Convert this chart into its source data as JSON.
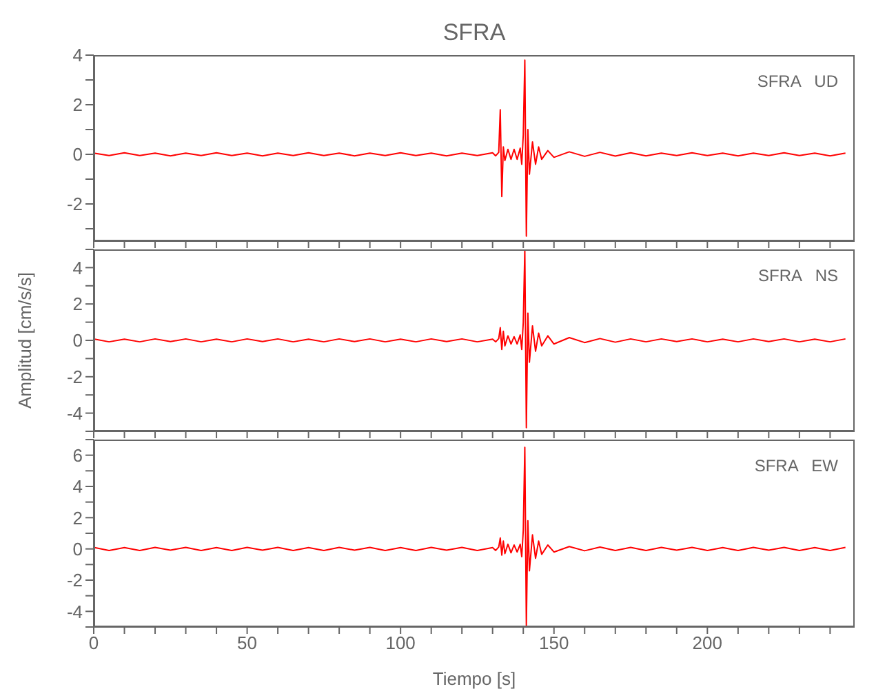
{
  "chart_data": [
    {
      "type": "line",
      "title": "SFRA",
      "annotations": [
        "SFRA   UD"
      ],
      "tick_labels": "y",
      "x": [
        0,
        5,
        10,
        15,
        20,
        25,
        30,
        35,
        40,
        45,
        50,
        55,
        60,
        65,
        70,
        75,
        80,
        85,
        90,
        95,
        100,
        105,
        110,
        115,
        120,
        125,
        130,
        131,
        132,
        132.5,
        133,
        133.5,
        134,
        135,
        136,
        137,
        138,
        139,
        139.5,
        140,
        140.5,
        141,
        141.5,
        142,
        143,
        144,
        145,
        146,
        148,
        150,
        155,
        160,
        165,
        170,
        175,
        180,
        185,
        190,
        195,
        200,
        205,
        210,
        215,
        220,
        225,
        230,
        235,
        240,
        245
      ],
      "series": [
        {
          "color": "#ff0000",
          "values": [
            0.05,
            -0.05,
            0.06,
            -0.05,
            0.05,
            -0.06,
            0.05,
            -0.05,
            0.06,
            -0.05,
            0.05,
            -0.06,
            0.05,
            -0.05,
            0.06,
            -0.05,
            0.05,
            -0.06,
            0.05,
            -0.05,
            0.06,
            -0.05,
            0.05,
            -0.06,
            0.05,
            -0.05,
            0.06,
            -0.06,
            0.08,
            1.8,
            -1.7,
            0.3,
            -0.25,
            0.2,
            -0.2,
            0.2,
            -0.2,
            0.25,
            -0.4,
            0.8,
            3.8,
            -3.3,
            1.0,
            -0.8,
            0.5,
            -0.4,
            0.3,
            -0.2,
            0.15,
            -0.12,
            0.1,
            -0.08,
            0.08,
            -0.07,
            0.06,
            -0.06,
            0.05,
            -0.05,
            0.06,
            -0.05,
            0.05,
            -0.06,
            0.05,
            -0.05,
            0.06,
            -0.05,
            0.05,
            -0.06,
            0.05
          ]
        }
      ],
      "xlim": [
        0,
        248
      ],
      "xticks": [
        0,
        {
          "value": 10,
          "label": null
        },
        {
          "value": 20,
          "label": null
        },
        {
          "value": 30,
          "label": null
        },
        {
          "value": 40,
          "label": null
        },
        50,
        {
          "value": 60,
          "label": null
        },
        {
          "value": 70,
          "label": null
        },
        {
          "value": 80,
          "label": null
        },
        {
          "value": 90,
          "label": null
        },
        100,
        {
          "value": 110,
          "label": null
        },
        {
          "value": 120,
          "label": null
        },
        {
          "value": 130,
          "label": null
        },
        {
          "value": 140,
          "label": null
        },
        150,
        {
          "value": 160,
          "label": null
        },
        {
          "value": 170,
          "label": null
        },
        {
          "value": 180,
          "label": null
        },
        {
          "value": 190,
          "label": null
        },
        200,
        {
          "value": 210,
          "label": null
        },
        {
          "value": 220,
          "label": null
        },
        {
          "value": 230,
          "label": null
        },
        {
          "value": 240,
          "label": null
        }
      ],
      "ylim": [
        -3.5,
        4
      ],
      "yticks": [
        {
          "value": -3,
          "label": null
        },
        -2,
        {
          "value": -1,
          "label": null
        },
        0,
        {
          "value": 1,
          "label": null
        },
        2,
        {
          "value": 3,
          "label": null
        },
        4
      ]
    },
    {
      "type": "line",
      "ylabel": "Amplitud [cm/s/s]",
      "annotations": [
        "SFRA   NS"
      ],
      "tick_labels": "y",
      "x": [
        0,
        5,
        10,
        15,
        20,
        25,
        30,
        35,
        40,
        45,
        50,
        55,
        60,
        65,
        70,
        75,
        80,
        85,
        90,
        95,
        100,
        105,
        110,
        115,
        120,
        125,
        130,
        131,
        132,
        132.5,
        133,
        133.5,
        134,
        135,
        136,
        137,
        138,
        139,
        139.5,
        140,
        140.5,
        141,
        141.5,
        142,
        143,
        144,
        145,
        146,
        148,
        150,
        155,
        160,
        165,
        170,
        175,
        180,
        185,
        190,
        195,
        200,
        205,
        210,
        215,
        220,
        225,
        230,
        235,
        240,
        245
      ],
      "series": [
        {
          "color": "#ff0000",
          "values": [
            0.08,
            -0.08,
            0.07,
            -0.08,
            0.08,
            -0.07,
            0.08,
            -0.08,
            0.07,
            -0.08,
            0.08,
            -0.07,
            0.08,
            -0.08,
            0.07,
            -0.08,
            0.08,
            -0.07,
            0.08,
            -0.08,
            0.07,
            -0.08,
            0.08,
            -0.07,
            0.08,
            -0.08,
            0.07,
            -0.08,
            0.1,
            0.7,
            -0.5,
            0.5,
            -0.3,
            0.25,
            -0.2,
            0.2,
            -0.2,
            0.3,
            -0.5,
            1.0,
            5.0,
            -4.8,
            1.5,
            -1.2,
            0.8,
            -0.6,
            0.4,
            -0.3,
            0.25,
            -0.2,
            0.15,
            -0.12,
            0.1,
            -0.1,
            0.08,
            -0.08,
            0.08,
            -0.07,
            0.08,
            -0.08,
            0.07,
            -0.08,
            0.08,
            -0.07,
            0.08,
            -0.08,
            0.07,
            -0.08,
            0.08
          ]
        }
      ],
      "xlim": [
        0,
        248
      ],
      "xticks": [
        0,
        {
          "value": 10,
          "label": null
        },
        {
          "value": 20,
          "label": null
        },
        {
          "value": 30,
          "label": null
        },
        {
          "value": 40,
          "label": null
        },
        50,
        {
          "value": 60,
          "label": null
        },
        {
          "value": 70,
          "label": null
        },
        {
          "value": 80,
          "label": null
        },
        {
          "value": 90,
          "label": null
        },
        100,
        {
          "value": 110,
          "label": null
        },
        {
          "value": 120,
          "label": null
        },
        {
          "value": 130,
          "label": null
        },
        {
          "value": 140,
          "label": null
        },
        150,
        {
          "value": 160,
          "label": null
        },
        {
          "value": 170,
          "label": null
        },
        {
          "value": 180,
          "label": null
        },
        {
          "value": 190,
          "label": null
        },
        200,
        {
          "value": 210,
          "label": null
        },
        {
          "value": 220,
          "label": null
        },
        {
          "value": 230,
          "label": null
        },
        {
          "value": 240,
          "label": null
        }
      ],
      "ylim": [
        -5,
        5
      ],
      "yticks": [
        {
          "value": -5,
          "label": null
        },
        -4,
        {
          "value": -3,
          "label": null
        },
        -2,
        {
          "value": -1,
          "label": null
        },
        0,
        {
          "value": 1,
          "label": null
        },
        2,
        {
          "value": 3,
          "label": null
        },
        4,
        {
          "value": 5,
          "label": null
        }
      ]
    },
    {
      "type": "line",
      "xlabel": "Tiempo [s]",
      "annotations": [
        "SFRA   EW"
      ],
      "x": [
        0,
        5,
        10,
        15,
        20,
        25,
        30,
        35,
        40,
        45,
        50,
        55,
        60,
        65,
        70,
        75,
        80,
        85,
        90,
        95,
        100,
        105,
        110,
        115,
        120,
        125,
        130,
        131,
        132,
        132.5,
        133,
        133.5,
        134,
        135,
        136,
        137,
        138,
        139,
        139.5,
        140,
        140.5,
        141,
        141.5,
        142,
        143,
        144,
        145,
        146,
        148,
        150,
        155,
        160,
        165,
        170,
        175,
        180,
        185,
        190,
        195,
        200,
        205,
        210,
        215,
        220,
        225,
        230,
        235,
        240,
        245
      ],
      "series": [
        {
          "color": "#ff0000",
          "values": [
            0.1,
            -0.1,
            0.08,
            -0.1,
            0.1,
            -0.08,
            0.1,
            -0.1,
            0.08,
            -0.1,
            0.1,
            -0.08,
            0.1,
            -0.1,
            0.08,
            -0.1,
            0.1,
            -0.08,
            0.1,
            -0.1,
            0.08,
            -0.1,
            0.1,
            -0.08,
            0.1,
            -0.1,
            0.08,
            -0.1,
            0.12,
            0.7,
            -0.4,
            0.5,
            -0.3,
            0.3,
            -0.25,
            0.25,
            -0.2,
            0.3,
            -0.5,
            1.2,
            6.5,
            -4.9,
            1.8,
            -1.4,
            0.9,
            -0.6,
            0.5,
            -0.35,
            0.25,
            -0.2,
            0.15,
            -0.12,
            0.12,
            -0.1,
            0.1,
            -0.1,
            0.1,
            -0.08,
            0.1,
            -0.1,
            0.08,
            -0.1,
            0.1,
            -0.08,
            0.1,
            -0.1,
            0.08,
            -0.1,
            0.1
          ]
        }
      ],
      "xlim": [
        0,
        248
      ],
      "xticks": [
        0,
        {
          "value": 10,
          "label": null
        },
        {
          "value": 20,
          "label": null
        },
        {
          "value": 30,
          "label": null
        },
        {
          "value": 40,
          "label": null
        },
        50,
        {
          "value": 60,
          "label": null
        },
        {
          "value": 70,
          "label": null
        },
        {
          "value": 80,
          "label": null
        },
        {
          "value": 90,
          "label": null
        },
        100,
        {
          "value": 110,
          "label": null
        },
        {
          "value": 120,
          "label": null
        },
        {
          "value": 130,
          "label": null
        },
        {
          "value": 140,
          "label": null
        },
        150,
        {
          "value": 160,
          "label": null
        },
        {
          "value": 170,
          "label": null
        },
        {
          "value": 180,
          "label": null
        },
        {
          "value": 190,
          "label": null
        },
        200,
        {
          "value": 210,
          "label": null
        },
        {
          "value": 220,
          "label": null
        },
        {
          "value": 230,
          "label": null
        },
        {
          "value": 240,
          "label": null
        }
      ],
      "ylim": [
        -5,
        7
      ],
      "yticks": [
        {
          "value": -5,
          "label": null
        },
        -4,
        {
          "value": -3,
          "label": null
        },
        -2,
        {
          "value": -1,
          "label": null
        },
        0,
        {
          "value": 1,
          "label": null
        },
        2,
        {
          "value": 3,
          "label": null
        },
        4,
        {
          "value": 5,
          "label": null
        },
        6,
        {
          "value": 7,
          "label": null
        }
      ]
    }
  ]
}
